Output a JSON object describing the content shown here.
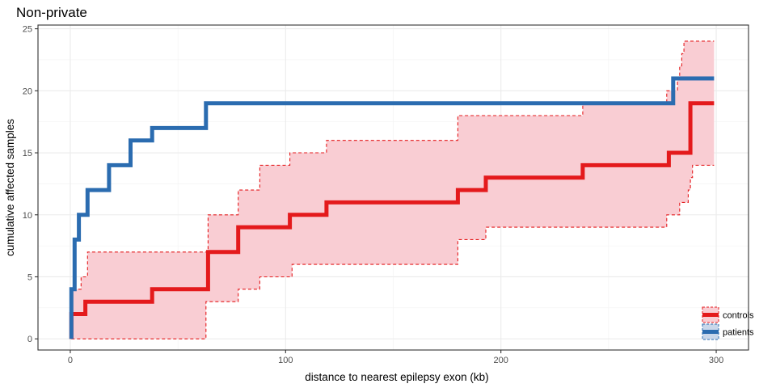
{
  "chart_data": {
    "type": "line",
    "title": "Non-private",
    "xlabel": "distance to nearest epilepsy exon (kb)",
    "ylabel": "cumulative affected samples",
    "xlim": [
      -15,
      315
    ],
    "ylim": [
      -0.9,
      25.3
    ],
    "xticks": [
      0,
      100,
      200,
      300
    ],
    "yticks": [
      0,
      5,
      10,
      15,
      20,
      25
    ],
    "grid": true,
    "legend_position": "bottom-right",
    "series": [
      {
        "name": "controls",
        "color": "#e41a1c",
        "step": true,
        "points": [
          [
            0.5,
            0
          ],
          [
            0.5,
            2
          ],
          [
            7,
            2
          ],
          [
            7,
            3
          ],
          [
            38,
            3
          ],
          [
            38,
            4
          ],
          [
            64,
            4
          ],
          [
            64,
            7
          ],
          [
            78,
            7
          ],
          [
            78,
            9
          ],
          [
            102,
            9
          ],
          [
            102,
            10
          ],
          [
            119,
            10
          ],
          [
            119,
            11
          ],
          [
            180,
            11
          ],
          [
            180,
            12
          ],
          [
            193,
            12
          ],
          [
            193,
            13
          ],
          [
            238,
            13
          ],
          [
            238,
            14
          ],
          [
            278,
            14
          ],
          [
            278,
            15
          ],
          [
            288,
            15
          ],
          [
            288,
            19
          ],
          [
            299,
            19
          ]
        ],
        "band": {
          "color": "#f9cdd3",
          "upper": [
            [
              0.5,
              0
            ],
            [
              0.5,
              4
            ],
            [
              5,
              4
            ],
            [
              5,
              5
            ],
            [
              8,
              5
            ],
            [
              8,
              7
            ],
            [
              64,
              7
            ],
            [
              64,
              10
            ],
            [
              78,
              10
            ],
            [
              78,
              12
            ],
            [
              88,
              12
            ],
            [
              88,
              14
            ],
            [
              102,
              14
            ],
            [
              102,
              15
            ],
            [
              119,
              15
            ],
            [
              119,
              16
            ],
            [
              180,
              16
            ],
            [
              180,
              18
            ],
            [
              238,
              18
            ],
            [
              238,
              19
            ],
            [
              277,
              19
            ],
            [
              277,
              20
            ],
            [
              282,
              20
            ],
            [
              282,
              21
            ],
            [
              283,
              21
            ],
            [
              283,
              22
            ],
            [
              284,
              22
            ],
            [
              284,
              23
            ],
            [
              285,
              23
            ],
            [
              285,
              24
            ],
            [
              299,
              24
            ]
          ],
          "lower": [
            [
              0.5,
              0
            ],
            [
              63,
              0
            ],
            [
              63,
              3
            ],
            [
              78,
              3
            ],
            [
              78,
              4
            ],
            [
              88,
              4
            ],
            [
              88,
              5
            ],
            [
              103,
              5
            ],
            [
              103,
              6
            ],
            [
              180,
              6
            ],
            [
              180,
              8
            ],
            [
              193,
              8
            ],
            [
              193,
              9
            ],
            [
              277,
              9
            ],
            [
              277,
              10
            ],
            [
              283,
              10
            ],
            [
              283,
              11
            ],
            [
              287,
              11
            ],
            [
              287,
              12
            ],
            [
              288,
              12
            ],
            [
              288,
              13
            ],
            [
              289,
              13
            ],
            [
              289,
              14
            ],
            [
              299,
              14
            ]
          ]
        }
      },
      {
        "name": "patients",
        "color": "#2b6cb0",
        "step": true,
        "points": [
          [
            0.5,
            0
          ],
          [
            0.5,
            4
          ],
          [
            2,
            4
          ],
          [
            2,
            8
          ],
          [
            4,
            8
          ],
          [
            4,
            10
          ],
          [
            8,
            10
          ],
          [
            8,
            12
          ],
          [
            18,
            12
          ],
          [
            18,
            14
          ],
          [
            28,
            14
          ],
          [
            28,
            16
          ],
          [
            38,
            16
          ],
          [
            38,
            17
          ],
          [
            63,
            17
          ],
          [
            63,
            19
          ],
          [
            280,
            19
          ],
          [
            280,
            21
          ],
          [
            299,
            21
          ]
        ]
      }
    ]
  }
}
